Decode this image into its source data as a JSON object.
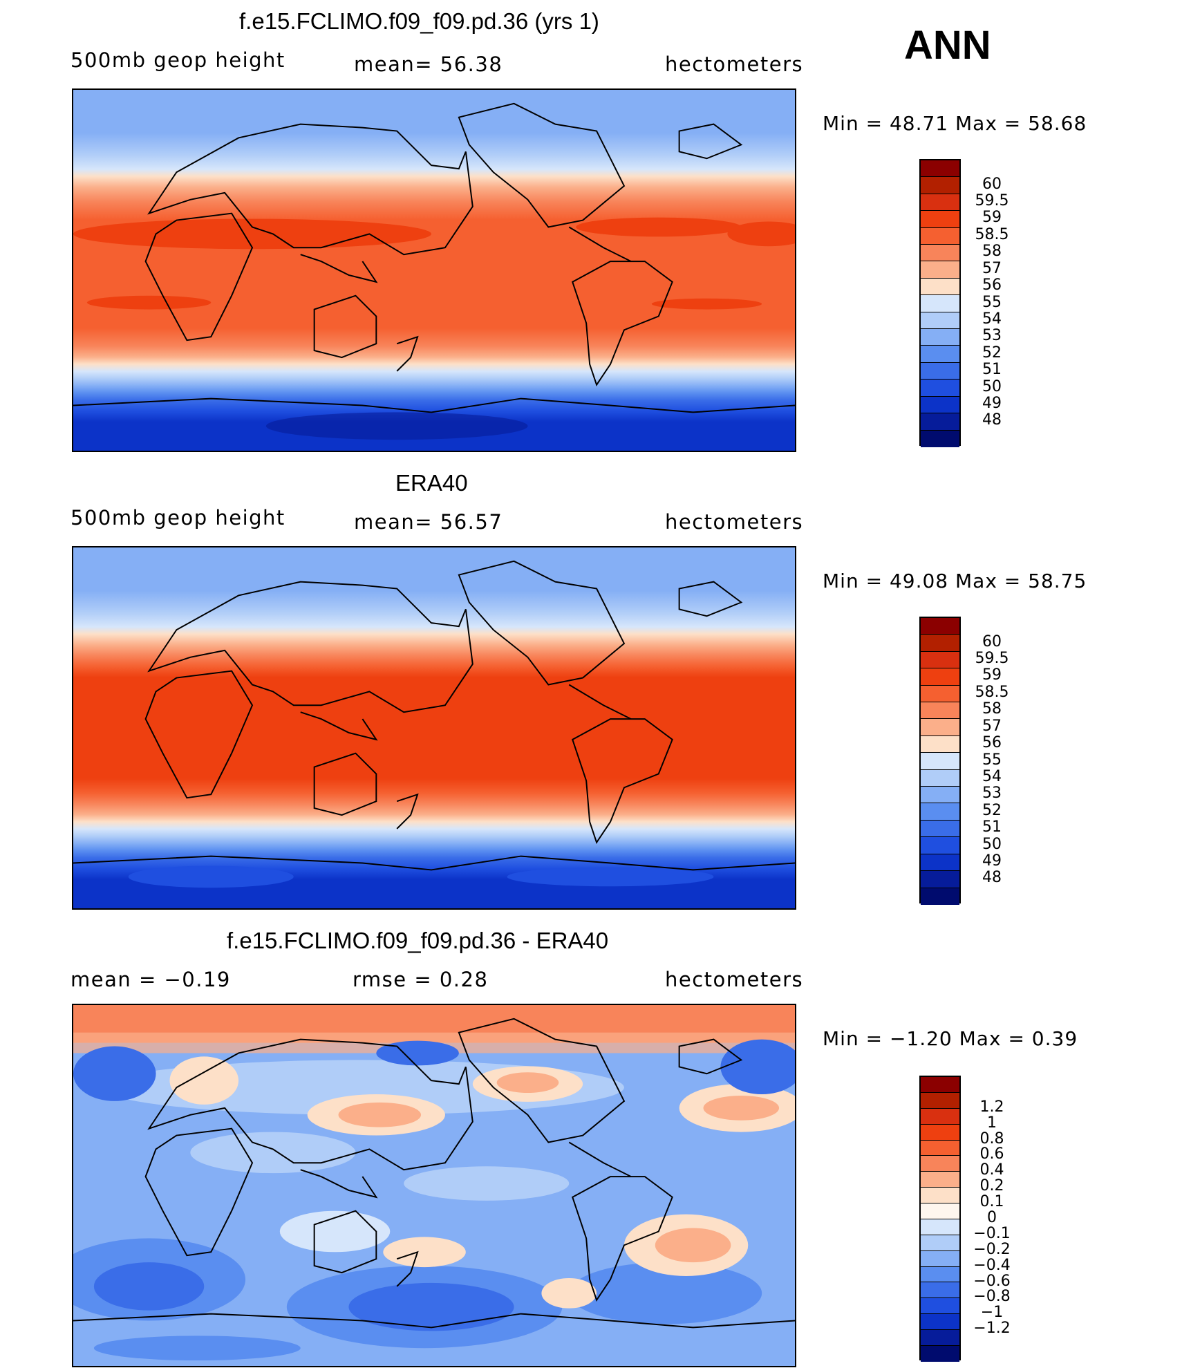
{
  "season": "ANN",
  "panels": [
    {
      "title": "f.e15.FCLIMO.f09_f09.pd.36 (yrs 1)",
      "left": "500mb geop height",
      "center": "mean=  56.38",
      "right": "hectometers",
      "minmax": "Min =   48.71  Max =   58.68",
      "colorbar_colors": [
        "#8b0000",
        "#b22000",
        "#d93010",
        "#ee4010",
        "#f56030",
        "#f8845a",
        "#fbaf8a",
        "#fde0c8",
        "#d6e6fb",
        "#b0cdf8",
        "#85aff5",
        "#5a8ef0",
        "#3a6de8",
        "#1f4fe0",
        "#0c33c8",
        "#061c9a",
        "#000b6e"
      ],
      "colorbar_labels": [
        "60",
        "59.5",
        "59",
        "58.5",
        "58",
        "57",
        "56",
        "55",
        "54",
        "53",
        "52",
        "51",
        "50",
        "49",
        "48"
      ]
    },
    {
      "title": "ERA40",
      "left": "500mb geop height",
      "center": "mean=  56.57",
      "right": "hectometers",
      "minmax": "Min =   49.08  Max =   58.75",
      "colorbar_colors": [
        "#8b0000",
        "#b22000",
        "#d93010",
        "#ee4010",
        "#f56030",
        "#f8845a",
        "#fbaf8a",
        "#fde0c8",
        "#d6e6fb",
        "#b0cdf8",
        "#85aff5",
        "#5a8ef0",
        "#3a6de8",
        "#1f4fe0",
        "#0c33c8",
        "#061c9a",
        "#000b6e"
      ],
      "colorbar_labels": [
        "60",
        "59.5",
        "59",
        "58.5",
        "58",
        "57",
        "56",
        "55",
        "54",
        "53",
        "52",
        "51",
        "50",
        "49",
        "48"
      ]
    },
    {
      "title": "f.e15.FCLIMO.f09_f09.pd.36 - ERA40",
      "left": "mean =   −0.19",
      "center": "rmse =    0.28",
      "right": "hectometers",
      "minmax": "Min =   −1.20  Max =    0.39",
      "colorbar_colors": [
        "#8b0000",
        "#b22000",
        "#d93010",
        "#ee4010",
        "#f56030",
        "#f8845a",
        "#fbaf8a",
        "#fde0c8",
        "#fef6ee",
        "#d6e6fb",
        "#b0cdf8",
        "#85aff5",
        "#5a8ef0",
        "#3a6de8",
        "#1f4fe0",
        "#0c33c8",
        "#061c9a",
        "#000b6e"
      ],
      "colorbar_labels": [
        "1.2",
        "1",
        "0.8",
        "0.6",
        "0.4",
        "0.2",
        "0.1",
        "0",
        "−0.1",
        "−0.2",
        "−0.4",
        "−0.6",
        "−0.8",
        "−1",
        "−1.2"
      ]
    }
  ]
}
